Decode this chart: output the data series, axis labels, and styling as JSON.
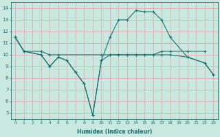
{
  "title": "",
  "xlabel": "Humidex (Indice chaleur)",
  "xlim": [
    -0.5,
    23.5
  ],
  "ylim": [
    4.5,
    14.5
  ],
  "xticks": [
    0,
    1,
    2,
    3,
    4,
    5,
    6,
    7,
    8,
    9,
    10,
    11,
    12,
    13,
    14,
    15,
    16,
    17,
    18,
    19,
    20,
    21,
    22,
    23
  ],
  "yticks": [
    5,
    6,
    7,
    8,
    9,
    10,
    11,
    12,
    13,
    14
  ],
  "background_color": "#c8e8e0",
  "grid_color": "#e8a0a0",
  "line_color": "#1a7070",
  "series": [
    {
      "x": [
        0,
        1,
        3,
        4,
        5,
        10,
        11,
        12,
        13,
        14,
        15,
        16,
        17,
        18,
        20,
        22
      ],
      "y": [
        11.5,
        10.3,
        10.3,
        10.0,
        10.0,
        10.0,
        10.0,
        10.0,
        10.0,
        10.0,
        10.0,
        10.0,
        10.3,
        10.3,
        10.3,
        10.3
      ]
    },
    {
      "x": [
        0,
        1,
        3,
        4,
        5,
        6,
        7,
        8,
        9,
        10,
        11,
        12,
        13,
        14,
        15,
        16,
        17,
        18,
        20,
        22,
        23
      ],
      "y": [
        11.5,
        10.3,
        10.0,
        9.0,
        9.8,
        9.5,
        8.5,
        7.5,
        4.8,
        9.5,
        11.5,
        13.0,
        13.0,
        13.8,
        13.7,
        13.7,
        13.0,
        11.5,
        9.8,
        9.3,
        8.3
      ]
    },
    {
      "x": [
        0,
        1,
        3,
        4,
        5,
        6,
        7,
        8,
        9,
        10,
        11,
        12,
        13,
        14,
        15,
        16,
        17,
        18,
        20,
        22,
        23
      ],
      "y": [
        11.5,
        10.3,
        10.0,
        9.0,
        9.8,
        9.5,
        8.5,
        7.5,
        4.8,
        9.5,
        10.0,
        10.0,
        10.0,
        10.0,
        10.0,
        10.0,
        10.0,
        10.0,
        9.8,
        9.3,
        8.3
      ]
    }
  ]
}
